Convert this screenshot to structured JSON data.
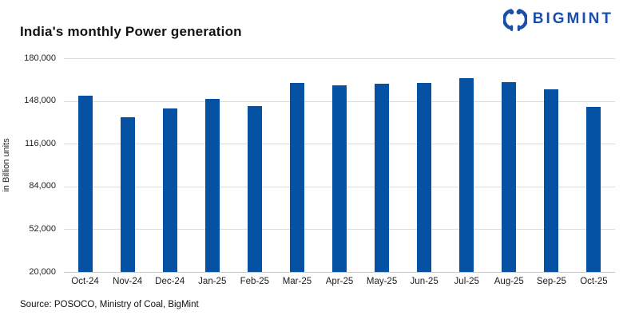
{
  "header": {
    "title": "India's monthly Power generation",
    "logo_text": "BIGMINT"
  },
  "chart_data": {
    "type": "bar",
    "title": "India's monthly Power generation",
    "xlabel": "",
    "ylabel": "in Billion units",
    "categories": [
      "Oct-24",
      "Nov-24",
      "Dec-24",
      "Jan-25",
      "Feb-25",
      "Mar-25",
      "Apr-25",
      "May-25",
      "Jun-25",
      "Jul-25",
      "Aug-25",
      "Sep-25",
      "Oct-25"
    ],
    "values": [
      152000,
      136000,
      142500,
      149500,
      144000,
      161500,
      159500,
      161000,
      161500,
      165000,
      162000,
      156500,
      143500
    ],
    "ylim": [
      20000,
      180000
    ],
    "ytick_step": 32000,
    "grid": true,
    "legend": false
  },
  "footer": {
    "source": "Source: POSOCO, Ministry of Coal, BigMint"
  },
  "colors": {
    "bar_blue": "#0552a5",
    "logo_blue": "#1b4daa",
    "grid": "#dcdcdc"
  }
}
